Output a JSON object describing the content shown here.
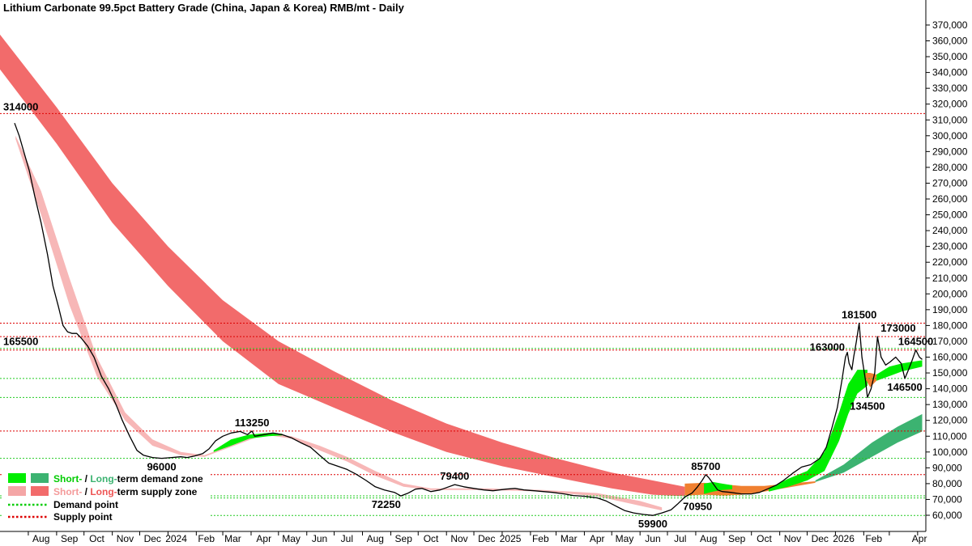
{
  "chart_data": {
    "type": "line",
    "title": "Lithium Carbonate 99.5pct Battery Grade (China, Japan & Korea) RMB/mt - Daily",
    "xlabel": "",
    "ylabel": "",
    "x_tick_labels": [
      "Aug",
      "Sep",
      "Oct",
      "Nov",
      "Dec",
      "2024",
      "Feb",
      "Mar",
      "Apr",
      "May",
      "Jun",
      "Jul",
      "Aug",
      "Sep",
      "Oct",
      "Nov",
      "Dec",
      "2025",
      "Feb",
      "Mar",
      "Apr",
      "May",
      "Jun",
      "Jul",
      "Aug",
      "Sep",
      "Oct",
      "Nov",
      "Dec",
      "2026",
      "Feb",
      "Apr"
    ],
    "y_tick_labels": [
      "60,000",
      "70,000",
      "80,000",
      "90,000",
      "100,000",
      "110,000",
      "120,000",
      "130,000",
      "140,000",
      "150,000",
      "160,000",
      "170,000",
      "180,000",
      "190,000",
      "200,000",
      "210,000",
      "220,000",
      "230,000",
      "240,000",
      "250,000",
      "260,000",
      "270,000",
      "280,000",
      "290,000",
      "300,000",
      "310,000",
      "320,000",
      "330,000",
      "340,000",
      "350,000",
      "360,000",
      "370,000"
    ],
    "ylim": [
      55000,
      373000
    ],
    "grid": false,
    "legend_position": "bottom-left",
    "legend": [
      {
        "label_a": "Short-",
        "sep": " / ",
        "label_b": "Long-",
        "rest": "term demand zone",
        "color_a": "#00ee00",
        "color_b": "#3cb371"
      },
      {
        "label_a": "Short-",
        "sep": " / ",
        "label_b": "Long-",
        "rest": "term supply zone",
        "color_a": "#f4a6a6",
        "color_b": "#f26b6b"
      },
      {
        "label": "Demand point",
        "color": "#00cc00"
      },
      {
        "label": "Supply point",
        "color": "#dd0000"
      }
    ],
    "price_series": {
      "name": "",
      "color": "#000000",
      "points": [
        [
          "2023-07-17",
          308000
        ],
        [
          "2023-07-22",
          300000
        ],
        [
          "2023-07-27",
          290000
        ],
        [
          "2023-08-02",
          278000
        ],
        [
          "2023-08-08",
          262000
        ],
        [
          "2023-08-15",
          245000
        ],
        [
          "2023-08-22",
          225000
        ],
        [
          "2023-08-28",
          205000
        ],
        [
          "2023-09-03",
          192000
        ],
        [
          "2023-09-08",
          180000
        ],
        [
          "2023-09-13",
          176000
        ],
        [
          "2023-09-18",
          175000
        ],
        [
          "2023-09-23",
          175000
        ],
        [
          "2023-09-28",
          172000
        ],
        [
          "2023-10-05",
          167000
        ],
        [
          "2023-10-12",
          160000
        ],
        [
          "2023-10-20",
          148000
        ],
        [
          "2023-10-28",
          140000
        ],
        [
          "2023-11-05",
          130000
        ],
        [
          "2023-11-12",
          120000
        ],
        [
          "2023-11-20",
          110000
        ],
        [
          "2023-11-28",
          101000
        ],
        [
          "2023-12-05",
          98000
        ],
        [
          "2023-12-15",
          96500
        ],
        [
          "2023-12-25",
          96000
        ],
        [
          "2024-01-05",
          96500
        ],
        [
          "2024-01-15",
          97000
        ],
        [
          "2024-01-22",
          96500
        ],
        [
          "2024-01-30",
          97500
        ],
        [
          "2024-02-08",
          99000
        ],
        [
          "2024-02-15",
          102000
        ],
        [
          "2024-02-22",
          107000
        ],
        [
          "2024-03-01",
          110000
        ],
        [
          "2024-03-10",
          112000
        ],
        [
          "2024-03-20",
          113000
        ],
        [
          "2024-03-28",
          111000
        ],
        [
          "2024-04-02",
          113250
        ],
        [
          "2024-04-05",
          110000
        ],
        [
          "2024-04-15",
          111000
        ],
        [
          "2024-04-25",
          112000
        ],
        [
          "2024-05-05",
          111000
        ],
        [
          "2024-05-15",
          109000
        ],
        [
          "2024-05-25",
          106000
        ],
        [
          "2024-06-05",
          103000
        ],
        [
          "2024-06-15",
          98000
        ],
        [
          "2024-06-25",
          93000
        ],
        [
          "2024-07-05",
          91000
        ],
        [
          "2024-07-15",
          89000
        ],
        [
          "2024-07-25",
          86000
        ],
        [
          "2024-08-05",
          82000
        ],
        [
          "2024-08-15",
          78000
        ],
        [
          "2024-08-25",
          76000
        ],
        [
          "2024-09-05",
          74500
        ],
        [
          "2024-09-12",
          72250
        ],
        [
          "2024-09-20",
          74000
        ],
        [
          "2024-09-28",
          76500
        ],
        [
          "2024-10-05",
          77000
        ],
        [
          "2024-10-15",
          75000
        ],
        [
          "2024-10-25",
          76000
        ],
        [
          "2024-11-01",
          77500
        ],
        [
          "2024-11-10",
          79400
        ],
        [
          "2024-11-20",
          78000
        ],
        [
          "2024-12-01",
          77000
        ],
        [
          "2024-12-12",
          76000
        ],
        [
          "2024-12-22",
          75500
        ],
        [
          "2025-01-05",
          76500
        ],
        [
          "2025-01-15",
          77000
        ],
        [
          "2025-01-25",
          76000
        ],
        [
          "2025-02-05",
          75500
        ],
        [
          "2025-02-15",
          75000
        ],
        [
          "2025-02-25",
          74500
        ],
        [
          "2025-03-10",
          73500
        ],
        [
          "2025-03-20",
          72500
        ],
        [
          "2025-04-01",
          72000
        ],
        [
          "2025-04-15",
          71000
        ],
        [
          "2025-04-25",
          69000
        ],
        [
          "2025-05-05",
          66000
        ],
        [
          "2025-05-15",
          63000
        ],
        [
          "2025-05-25",
          61500
        ],
        [
          "2025-06-05",
          60500
        ],
        [
          "2025-06-15",
          59900
        ],
        [
          "2025-06-25",
          61500
        ],
        [
          "2025-07-05",
          63500
        ],
        [
          "2025-07-12",
          67000
        ],
        [
          "2025-07-20",
          71500
        ],
        [
          "2025-07-28",
          74000
        ],
        [
          "2025-08-03",
          78000
        ],
        [
          "2025-08-08",
          82000
        ],
        [
          "2025-08-12",
          85700
        ],
        [
          "2025-08-15",
          84000
        ],
        [
          "2025-08-20",
          80000
        ],
        [
          "2025-08-25",
          76000
        ],
        [
          "2025-08-30",
          75000
        ],
        [
          "2025-09-08",
          74500
        ],
        [
          "2025-09-20",
          73500
        ],
        [
          "2025-10-01",
          73500
        ],
        [
          "2025-10-10",
          74500
        ],
        [
          "2025-10-20",
          77000
        ],
        [
          "2025-10-28",
          79000
        ],
        [
          "2025-11-05",
          82000
        ],
        [
          "2025-11-15",
          86500
        ],
        [
          "2025-11-25",
          90500
        ],
        [
          "2025-12-05",
          92000
        ],
        [
          "2025-12-15",
          96000
        ],
        [
          "2025-12-22",
          103000
        ],
        [
          "2025-12-28",
          115000
        ],
        [
          "2026-01-03",
          128000
        ],
        [
          "2026-01-08",
          145000
        ],
        [
          "2026-01-12",
          160000
        ],
        [
          "2026-01-14",
          163000
        ],
        [
          "2026-01-16",
          156000
        ],
        [
          "2026-01-19",
          152000
        ],
        [
          "2026-01-21",
          160000
        ],
        [
          "2026-01-24",
          170000
        ],
        [
          "2026-01-27",
          181500
        ],
        [
          "2026-01-30",
          160000
        ],
        [
          "2026-02-03",
          145000
        ],
        [
          "2026-02-05",
          134500
        ],
        [
          "2026-02-09",
          140000
        ],
        [
          "2026-02-13",
          150000
        ],
        [
          "2026-02-16",
          173000
        ],
        [
          "2026-02-20",
          160000
        ],
        [
          "2026-02-25",
          155000
        ],
        [
          "2026-03-02",
          157000
        ],
        [
          "2026-03-08",
          160000
        ],
        [
          "2026-03-14",
          156000
        ],
        [
          "2026-03-18",
          146500
        ],
        [
          "2026-03-22",
          152000
        ],
        [
          "2026-03-26",
          158000
        ],
        [
          "2026-03-30",
          164500
        ],
        [
          "2026-04-03",
          160000
        ],
        [
          "2026-04-06",
          158500
        ]
      ]
    },
    "bands": [
      {
        "name": "Long-term supply zone",
        "color": "#f26b6b",
        "dates": [
          "2023-07-01",
          "2023-09-01",
          "2023-11-01",
          "2024-01-01",
          "2024-03-01",
          "2024-05-01",
          "2024-07-01",
          "2024-09-01",
          "2024-11-01",
          "2025-01-01",
          "2025-03-01",
          "2025-05-01",
          "2025-06-15",
          "2025-07-20"
        ],
        "upper": [
          364000,
          318000,
          270000,
          230000,
          196000,
          170000,
          151000,
          133000,
          118000,
          106000,
          96000,
          87000,
          82000,
          78000
        ],
        "lower": [
          342000,
          295000,
          245000,
          205000,
          170000,
          143000,
          128000,
          113000,
          100000,
          91000,
          84000,
          77000,
          73000,
          72000
        ]
      },
      {
        "name": "Short-term supply zone",
        "color": "#f7b7b7",
        "dates": [
          "2023-07-18",
          "2023-08-15",
          "2023-09-15",
          "2023-10-15",
          "2023-11-15",
          "2023-12-15",
          "2024-01-15",
          "2024-02-10",
          "2024-04-15",
          "2024-05-15",
          "2024-06-15",
          "2024-07-15",
          "2024-08-15",
          "2024-09-15",
          "2024-10-15",
          "2024-12-15",
          "2025-02-15",
          "2025-04-15",
          "2025-06-01",
          "2025-06-25"
        ],
        "upper": [
          300000,
          265000,
          210000,
          160000,
          125000,
          108000,
          100000,
          98000,
          112000,
          110000,
          104000,
          97000,
          88000,
          80000,
          77000,
          77000,
          76000,
          74000,
          69000,
          65000
        ],
        "lower": [
          298000,
          250000,
          193000,
          148000,
          120000,
          104000,
          98000,
          97000,
          111000,
          108500,
          101000,
          94000,
          85000,
          78000,
          76000,
          76000,
          75000,
          72000,
          66000,
          63000
        ]
      },
      {
        "name": "Short-term demand zone (early)",
        "color": "#00ee00",
        "dates": [
          "2024-02-20",
          "2024-03-10",
          "2024-03-30",
          "2024-04-20",
          "2024-05-05"
        ],
        "upper": [
          101000,
          108000,
          111000,
          112000,
          111500
        ],
        "lower": [
          100000,
          104000,
          108500,
          110000,
          110500
        ]
      },
      {
        "name": "Short-term supply zone (Jul 2025)",
        "color": "#f08030",
        "dates": [
          "2025-07-20",
          "2025-08-10",
          "2025-09-01",
          "2025-09-20",
          "2025-10-15",
          "2025-11-10",
          "2025-12-10"
        ],
        "upper": [
          80000,
          80500,
          79500,
          78500,
          78500,
          80000,
          81500
        ],
        "lower": [
          72500,
          73000,
          72500,
          73000,
          75000,
          77500,
          80500
        ]
      },
      {
        "name": "Short-term demand zone (Aug 2025)",
        "color": "#00ee00",
        "dates": [
          "2025-08-10",
          "2025-08-20",
          "2025-08-30",
          "2025-09-10"
        ],
        "upper": [
          80000,
          81000,
          80000,
          79000
        ],
        "lower": [
          73500,
          75000,
          76000,
          76500
        ]
      },
      {
        "name": "Short-term demand zone (Nov 2025–Feb 2026)",
        "color": "#00ee00",
        "dates": [
          "2025-10-20",
          "2025-11-10",
          "2025-12-01",
          "2025-12-20",
          "2026-01-05",
          "2026-01-15",
          "2026-01-25",
          "2026-02-05"
        ],
        "upper": [
          77000,
          83000,
          88000,
          100000,
          125000,
          143000,
          152000,
          152000
        ],
        "lower": [
          75000,
          78000,
          82000,
          88000,
          107000,
          124000,
          137000,
          142000
        ]
      },
      {
        "name": "Long-term demand zone",
        "color": "#3cb371",
        "dates": [
          "2025-12-10",
          "2026-01-10",
          "2026-02-10",
          "2026-03-10",
          "2026-04-06"
        ],
        "upper": [
          82000,
          92000,
          106000,
          116000,
          124000
        ],
        "lower": [
          81000,
          87000,
          97000,
          106000,
          113000
        ]
      },
      {
        "name": "Short-term supply zone (Feb 2026)",
        "color": "#f08030",
        "dates": [
          "2026-02-03",
          "2026-02-08",
          "2026-02-15"
        ],
        "upper": [
          150000,
          150000,
          149000
        ],
        "lower": [
          146000,
          141000,
          145000
        ]
      },
      {
        "name": "Short-term demand zone (Mar 2026)",
        "color": "#00ee00",
        "dates": [
          "2026-02-15",
          "2026-03-01",
          "2026-03-15",
          "2026-04-06"
        ],
        "upper": [
          149000,
          154000,
          156000,
          158000
        ],
        "lower": [
          145000,
          148000,
          151000,
          154000
        ]
      }
    ],
    "supply_levels": [
      314000,
      181500,
      173000,
      164500,
      113250,
      85700
    ],
    "demand_levels": [
      165500,
      146500,
      134500,
      96000,
      72250,
      70950,
      59900
    ],
    "annotations": [
      {
        "text": "314000",
        "x": "2023-07-02",
        "y": 314000,
        "anchor": "start"
      },
      {
        "text": "165500",
        "x": "2023-07-02",
        "y": 165500,
        "anchor": "start"
      },
      {
        "text": "113250",
        "x": "2024-04-02",
        "y": 113250,
        "anchor": "middle"
      },
      {
        "text": "96000",
        "x": "2023-12-25",
        "y": 96000,
        "anchor": "middle"
      },
      {
        "text": "72250",
        "x": "2024-09-12",
        "y": 72250,
        "anchor": "end"
      },
      {
        "text": "79400",
        "x": "2024-11-10",
        "y": 79400,
        "anchor": "middle"
      },
      {
        "text": "59900",
        "x": "2025-06-15",
        "y": 59900,
        "anchor": "middle"
      },
      {
        "text": "70950",
        "x": "2025-08-03",
        "y": 70950,
        "anchor": "middle"
      },
      {
        "text": "85700",
        "x": "2025-08-12",
        "y": 85700,
        "anchor": "middle"
      },
      {
        "text": "181500",
        "x": "2026-01-27",
        "y": 181500,
        "anchor": "middle"
      },
      {
        "text": "163000",
        "x": "2026-01-14",
        "y": 163000,
        "anchor": "end"
      },
      {
        "text": "134500",
        "x": "2026-02-05",
        "y": 134500,
        "anchor": "middle"
      },
      {
        "text": "173000",
        "x": "2026-02-16",
        "y": 173000,
        "anchor": "start"
      },
      {
        "text": "164500",
        "x": "2026-03-30",
        "y": 164500,
        "anchor": "middle"
      },
      {
        "text": "146500",
        "x": "2026-03-18",
        "y": 146500,
        "anchor": "middle"
      }
    ]
  }
}
